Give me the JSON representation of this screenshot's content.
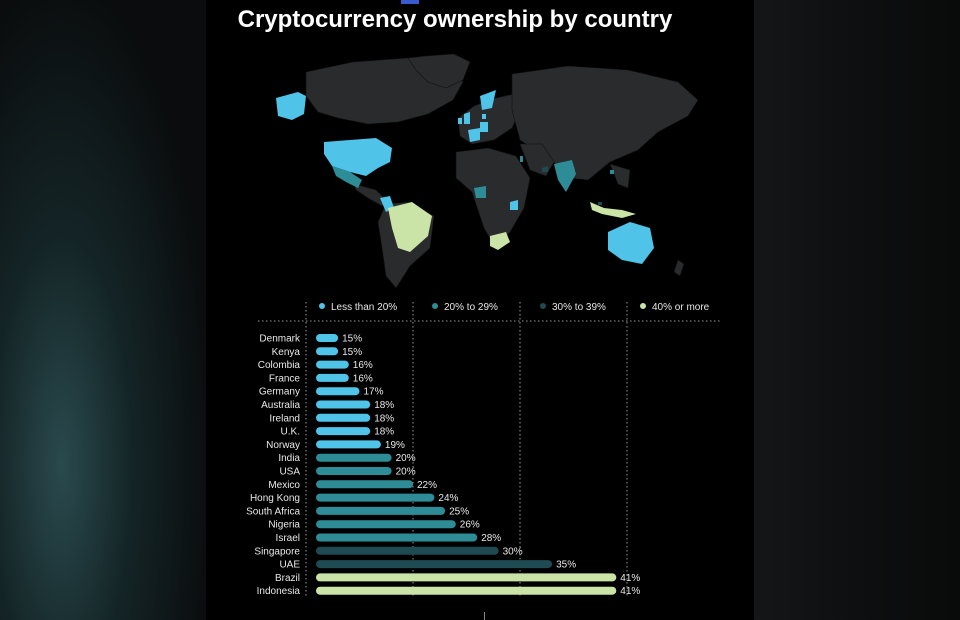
{
  "title": "Cryptocurrency ownership by country",
  "colors": {
    "less_than_20": "#4fc3e8",
    "20_to_29": "#2e8c96",
    "30_to_39": "#1f4a52",
    "40_or_more": "#c9e4a6",
    "land": "#2a2b2c",
    "background": "#000000"
  },
  "legend": [
    {
      "label": "Less than 20%",
      "color": "#4fc3e8"
    },
    {
      "label": "20% to 29%",
      "color": "#2e8c96"
    },
    {
      "label": "30% to 39%",
      "color": "#1f4a52"
    },
    {
      "label": "40% or more",
      "color": "#c9e4a6"
    }
  ],
  "chart_data": {
    "type": "bar",
    "orientation": "horizontal",
    "title": "Cryptocurrency ownership by country",
    "categories": [
      "Denmark",
      "Kenya",
      "Colombia",
      "France",
      "Germany",
      "Australia",
      "Ireland",
      "U.K.",
      "Norway",
      "India",
      "USA",
      "Mexico",
      "Hong Kong",
      "South Africa",
      "Nigeria",
      "Israel",
      "Singapore",
      "UAE",
      "Brazil",
      "Indonesia"
    ],
    "values": [
      15,
      15,
      16,
      16,
      17,
      18,
      18,
      18,
      19,
      20,
      20,
      22,
      24,
      25,
      26,
      28,
      30,
      35,
      41,
      41
    ],
    "value_labels": [
      "15%",
      "15%",
      "16%",
      "16%",
      "17%",
      "18%",
      "18%",
      "18%",
      "19%",
      "20%",
      "20%",
      "22%",
      "24%",
      "25%",
      "26%",
      "28%",
      "30%",
      "35%",
      "41%",
      "41%"
    ],
    "xlim": [
      12,
      42
    ],
    "grid_lines_at": [
      12,
      22,
      32,
      42
    ]
  }
}
